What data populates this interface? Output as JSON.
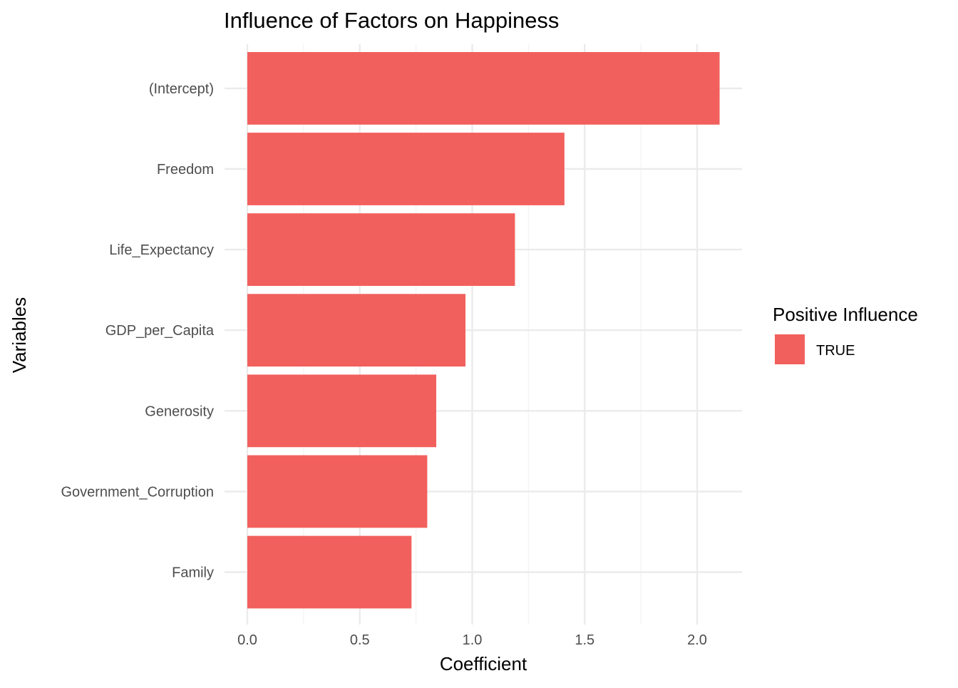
{
  "chart_data": {
    "type": "bar",
    "orientation": "horizontal",
    "title": "Influence of Factors on Happiness",
    "xlabel": "Coefficient",
    "ylabel": "Variables",
    "categories": [
      "(Intercept)",
      "Freedom",
      "Life_Expectancy",
      "GDP_per_Capita",
      "Generosity",
      "Government_Corruption",
      "Family"
    ],
    "values": [
      2.1,
      1.41,
      1.19,
      0.97,
      0.84,
      0.8,
      0.73
    ],
    "xlim": [
      0,
      2.2
    ],
    "xticks": [
      "0.0",
      "0.5",
      "1.0",
      "1.5",
      "2.0"
    ],
    "xtick_values": [
      0,
      0.5,
      1.0,
      1.5,
      2.0
    ],
    "grid": true,
    "legend": {
      "title": "Positive Influence",
      "placement": "right",
      "items": [
        {
          "label": "TRUE",
          "color": "#F2605D"
        }
      ]
    },
    "colors": {
      "bar": "#F2605D",
      "grid_major": "#EBEBEB",
      "grid_minor": "#F4F4F4"
    }
  }
}
